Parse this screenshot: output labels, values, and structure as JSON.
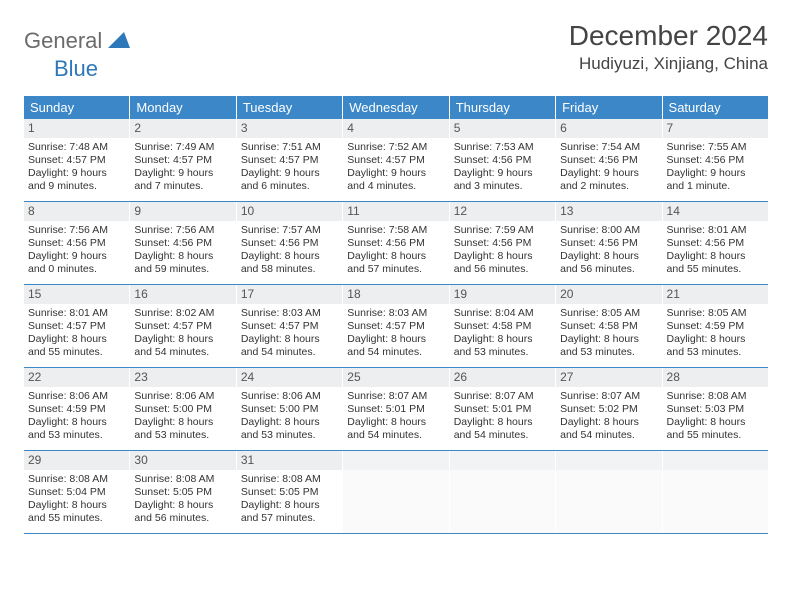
{
  "logo": {
    "word1": "General",
    "word2": "Blue"
  },
  "title": "December 2024",
  "location": "Hudiyuzi, Xinjiang, China",
  "colors": {
    "header_bg": "#3b87c8",
    "header_text": "#ffffff",
    "daynum_bg": "#eceef0",
    "border": "#3b87c8",
    "logo_gray": "#6b6b6b",
    "logo_blue": "#2e77b8"
  },
  "day_names": [
    "Sunday",
    "Monday",
    "Tuesday",
    "Wednesday",
    "Thursday",
    "Friday",
    "Saturday"
  ],
  "weeks": [
    [
      {
        "n": "1",
        "sunrise": "Sunrise: 7:48 AM",
        "sunset": "Sunset: 4:57 PM",
        "d1": "Daylight: 9 hours",
        "d2": "and 9 minutes."
      },
      {
        "n": "2",
        "sunrise": "Sunrise: 7:49 AM",
        "sunset": "Sunset: 4:57 PM",
        "d1": "Daylight: 9 hours",
        "d2": "and 7 minutes."
      },
      {
        "n": "3",
        "sunrise": "Sunrise: 7:51 AM",
        "sunset": "Sunset: 4:57 PM",
        "d1": "Daylight: 9 hours",
        "d2": "and 6 minutes."
      },
      {
        "n": "4",
        "sunrise": "Sunrise: 7:52 AM",
        "sunset": "Sunset: 4:57 PM",
        "d1": "Daylight: 9 hours",
        "d2": "and 4 minutes."
      },
      {
        "n": "5",
        "sunrise": "Sunrise: 7:53 AM",
        "sunset": "Sunset: 4:56 PM",
        "d1": "Daylight: 9 hours",
        "d2": "and 3 minutes."
      },
      {
        "n": "6",
        "sunrise": "Sunrise: 7:54 AM",
        "sunset": "Sunset: 4:56 PM",
        "d1": "Daylight: 9 hours",
        "d2": "and 2 minutes."
      },
      {
        "n": "7",
        "sunrise": "Sunrise: 7:55 AM",
        "sunset": "Sunset: 4:56 PM",
        "d1": "Daylight: 9 hours",
        "d2": "and 1 minute."
      }
    ],
    [
      {
        "n": "8",
        "sunrise": "Sunrise: 7:56 AM",
        "sunset": "Sunset: 4:56 PM",
        "d1": "Daylight: 9 hours",
        "d2": "and 0 minutes."
      },
      {
        "n": "9",
        "sunrise": "Sunrise: 7:56 AM",
        "sunset": "Sunset: 4:56 PM",
        "d1": "Daylight: 8 hours",
        "d2": "and 59 minutes."
      },
      {
        "n": "10",
        "sunrise": "Sunrise: 7:57 AM",
        "sunset": "Sunset: 4:56 PM",
        "d1": "Daylight: 8 hours",
        "d2": "and 58 minutes."
      },
      {
        "n": "11",
        "sunrise": "Sunrise: 7:58 AM",
        "sunset": "Sunset: 4:56 PM",
        "d1": "Daylight: 8 hours",
        "d2": "and 57 minutes."
      },
      {
        "n": "12",
        "sunrise": "Sunrise: 7:59 AM",
        "sunset": "Sunset: 4:56 PM",
        "d1": "Daylight: 8 hours",
        "d2": "and 56 minutes."
      },
      {
        "n": "13",
        "sunrise": "Sunrise: 8:00 AM",
        "sunset": "Sunset: 4:56 PM",
        "d1": "Daylight: 8 hours",
        "d2": "and 56 minutes."
      },
      {
        "n": "14",
        "sunrise": "Sunrise: 8:01 AM",
        "sunset": "Sunset: 4:56 PM",
        "d1": "Daylight: 8 hours",
        "d2": "and 55 minutes."
      }
    ],
    [
      {
        "n": "15",
        "sunrise": "Sunrise: 8:01 AM",
        "sunset": "Sunset: 4:57 PM",
        "d1": "Daylight: 8 hours",
        "d2": "and 55 minutes."
      },
      {
        "n": "16",
        "sunrise": "Sunrise: 8:02 AM",
        "sunset": "Sunset: 4:57 PM",
        "d1": "Daylight: 8 hours",
        "d2": "and 54 minutes."
      },
      {
        "n": "17",
        "sunrise": "Sunrise: 8:03 AM",
        "sunset": "Sunset: 4:57 PM",
        "d1": "Daylight: 8 hours",
        "d2": "and 54 minutes."
      },
      {
        "n": "18",
        "sunrise": "Sunrise: 8:03 AM",
        "sunset": "Sunset: 4:57 PM",
        "d1": "Daylight: 8 hours",
        "d2": "and 54 minutes."
      },
      {
        "n": "19",
        "sunrise": "Sunrise: 8:04 AM",
        "sunset": "Sunset: 4:58 PM",
        "d1": "Daylight: 8 hours",
        "d2": "and 53 minutes."
      },
      {
        "n": "20",
        "sunrise": "Sunrise: 8:05 AM",
        "sunset": "Sunset: 4:58 PM",
        "d1": "Daylight: 8 hours",
        "d2": "and 53 minutes."
      },
      {
        "n": "21",
        "sunrise": "Sunrise: 8:05 AM",
        "sunset": "Sunset: 4:59 PM",
        "d1": "Daylight: 8 hours",
        "d2": "and 53 minutes."
      }
    ],
    [
      {
        "n": "22",
        "sunrise": "Sunrise: 8:06 AM",
        "sunset": "Sunset: 4:59 PM",
        "d1": "Daylight: 8 hours",
        "d2": "and 53 minutes."
      },
      {
        "n": "23",
        "sunrise": "Sunrise: 8:06 AM",
        "sunset": "Sunset: 5:00 PM",
        "d1": "Daylight: 8 hours",
        "d2": "and 53 minutes."
      },
      {
        "n": "24",
        "sunrise": "Sunrise: 8:06 AM",
        "sunset": "Sunset: 5:00 PM",
        "d1": "Daylight: 8 hours",
        "d2": "and 53 minutes."
      },
      {
        "n": "25",
        "sunrise": "Sunrise: 8:07 AM",
        "sunset": "Sunset: 5:01 PM",
        "d1": "Daylight: 8 hours",
        "d2": "and 54 minutes."
      },
      {
        "n": "26",
        "sunrise": "Sunrise: 8:07 AM",
        "sunset": "Sunset: 5:01 PM",
        "d1": "Daylight: 8 hours",
        "d2": "and 54 minutes."
      },
      {
        "n": "27",
        "sunrise": "Sunrise: 8:07 AM",
        "sunset": "Sunset: 5:02 PM",
        "d1": "Daylight: 8 hours",
        "d2": "and 54 minutes."
      },
      {
        "n": "28",
        "sunrise": "Sunrise: 8:08 AM",
        "sunset": "Sunset: 5:03 PM",
        "d1": "Daylight: 8 hours",
        "d2": "and 55 minutes."
      }
    ],
    [
      {
        "n": "29",
        "sunrise": "Sunrise: 8:08 AM",
        "sunset": "Sunset: 5:04 PM",
        "d1": "Daylight: 8 hours",
        "d2": "and 55 minutes."
      },
      {
        "n": "30",
        "sunrise": "Sunrise: 8:08 AM",
        "sunset": "Sunset: 5:05 PM",
        "d1": "Daylight: 8 hours",
        "d2": "and 56 minutes."
      },
      {
        "n": "31",
        "sunrise": "Sunrise: 8:08 AM",
        "sunset": "Sunset: 5:05 PM",
        "d1": "Daylight: 8 hours",
        "d2": "and 57 minutes."
      },
      {
        "empty": true
      },
      {
        "empty": true
      },
      {
        "empty": true
      },
      {
        "empty": true
      }
    ]
  ]
}
